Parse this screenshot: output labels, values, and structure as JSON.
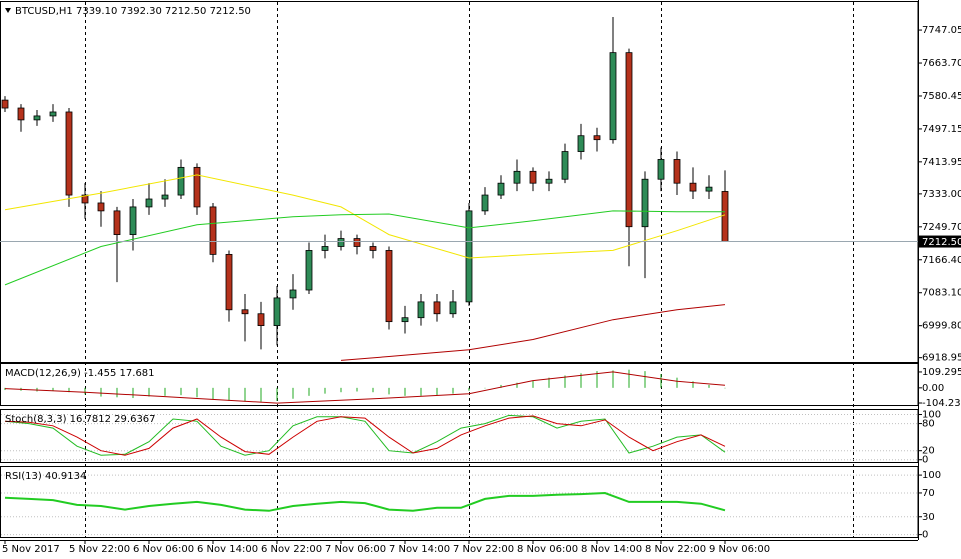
{
  "chart_data": [
    {
      "type": "candlestick",
      "title": "BTCUSD,H1  7339.10 7392.30 7212.50 7212.50",
      "xlim": [
        0,
        114
      ],
      "xticks": [
        {
          "value": 0,
          "label": "5 Nov 2017"
        },
        {
          "value": 10,
          "label": "5 Nov 22:00"
        },
        {
          "value": 18,
          "label": "6 Nov 06:00"
        },
        {
          "value": 26,
          "label": "6 Nov 14:00"
        },
        {
          "value": 34,
          "label": "6 Nov 22:00"
        },
        {
          "value": 42,
          "label": "7 Nov 06:00"
        },
        {
          "value": 50,
          "label": "7 Nov 14:00"
        },
        {
          "value": 58,
          "label": "7 Nov 22:00"
        },
        {
          "value": 66,
          "label": "8 Nov 06:00"
        },
        {
          "value": 74,
          "label": "8 Nov 14:00"
        },
        {
          "value": 82,
          "label": "8 Nov 22:00"
        },
        {
          "value": 90,
          "label": "9 Nov 06:00"
        }
      ],
      "xgrid": [
        10,
        34,
        58,
        82,
        106
      ],
      "ylim": [
        6908,
        7818
      ],
      "yticks": [
        7747.05,
        {
          "value": 7663.7,
          "label": "7663.70"
        },
        {
          "value": 7580.45,
          "label": "7580.45"
        },
        {
          "value": 7497.15,
          "label": "7497.15"
        },
        {
          "value": 7413.95,
          "label": "7413.95"
        },
        {
          "value": 7333,
          "label": "7333.00"
        },
        {
          "value": 7249.7,
          "label": "7249.70"
        },
        {
          "value": 7166.4,
          "label": "7166.40"
        },
        {
          "value": 7083.1,
          "label": "7083.10"
        },
        {
          "value": 6999.8,
          "label": "6999.80"
        },
        {
          "value": 6918.95,
          "label": "6918.95"
        }
      ],
      "up_color": "#2e8b57",
      "down_color": "#b5321c",
      "x": [
        0,
        2,
        4,
        6,
        8,
        10,
        12,
        14,
        16,
        18,
        20,
        22,
        24,
        26,
        28,
        30,
        32,
        34,
        36,
        38,
        40,
        42,
        44,
        46,
        48,
        50,
        52,
        54,
        56,
        58,
        60,
        62,
        64,
        66,
        68,
        70,
        72,
        74,
        76,
        78,
        80,
        82,
        84,
        86,
        88,
        90
      ],
      "open": [
        7570,
        7550,
        7520,
        7530,
        7540,
        7330,
        7310,
        7290,
        7230,
        7300,
        7320,
        7330,
        7400,
        7300,
        7180,
        7040,
        7030,
        7000,
        7070,
        7090,
        7190,
        7200,
        7220,
        7200,
        7190,
        7010,
        7020,
        7060,
        7030,
        7060,
        7290,
        7330,
        7360,
        7390,
        7360,
        7370,
        7440,
        7480,
        7470,
        7690,
        7250,
        7370,
        7420,
        7360,
        7340,
        7339.1
      ],
      "high": [
        7580,
        7560,
        7545,
        7560,
        7550,
        7360,
        7340,
        7300,
        7320,
        7360,
        7370,
        7420,
        7410,
        7310,
        7190,
        7080,
        7060,
        7100,
        7130,
        7210,
        7230,
        7240,
        7230,
        7210,
        7200,
        7050,
        7080,
        7080,
        7090,
        7310,
        7350,
        7380,
        7420,
        7400,
        7390,
        7460,
        7510,
        7500,
        7780,
        7700,
        7390,
        7450,
        7440,
        7400,
        7380,
        7392.3
      ],
      "low": [
        7540,
        7490,
        7505,
        7515,
        7300,
        7270,
        7250,
        7110,
        7190,
        7280,
        7300,
        7320,
        7280,
        7160,
        7010,
        6960,
        6940,
        6950,
        7040,
        7080,
        7170,
        7190,
        7180,
        7170,
        6990,
        6980,
        7000,
        7010,
        7020,
        7050,
        7280,
        7320,
        7340,
        7340,
        7340,
        7360,
        7420,
        7440,
        7460,
        7150,
        7120,
        7340,
        7330,
        7320,
        7320,
        7212.5
      ],
      "close": [
        7550,
        7520,
        7530,
        7540,
        7330,
        7310,
        7290,
        7230,
        7300,
        7320,
        7330,
        7400,
        7300,
        7180,
        7040,
        7030,
        7000,
        7070,
        7090,
        7190,
        7200,
        7220,
        7200,
        7190,
        7010,
        7020,
        7060,
        7030,
        7060,
        7290,
        7330,
        7360,
        7390,
        7360,
        7370,
        7440,
        7480,
        7470,
        7690,
        7250,
        7370,
        7420,
        7360,
        7340,
        7350,
        7212.5
      ],
      "line_x": [
        0,
        12,
        24,
        36,
        42,
        48,
        58,
        66,
        76,
        84,
        90
      ],
      "lines": [
        {
          "color": "#f2e600",
          "values": [
            7293,
            7335,
            7381,
            7330,
            7300,
            7230,
            7171,
            7180,
            7190,
            7240,
            7280
          ]
        },
        {
          "color": "#22cc22",
          "values": [
            7103,
            7200,
            7255,
            7275,
            7280,
            7282,
            7247,
            7265,
            7290,
            7288,
            7288
          ]
        },
        {
          "color": "#b00000",
          "values": [
            null,
            null,
            null,
            null,
            6912,
            6922,
            6939,
            6965,
            7015,
            7040,
            7053
          ]
        }
      ],
      "price_line": {
        "value": 7212.5,
        "label": "7212.50"
      }
    },
    {
      "type": "macd",
      "title": "MACD(12,26,9) -1.455 17.681",
      "xlim": [
        0,
        114
      ],
      "ylim": [
        -118,
        164
      ],
      "yticks": [
        109.295,
        {
          "value": 0,
          "label": "0.00"
        },
        -104.238
      ],
      "bar_color": "#22aa22",
      "signal_color": "#b00000",
      "x": [
        0,
        2,
        4,
        6,
        8,
        10,
        12,
        14,
        16,
        18,
        20,
        22,
        24,
        26,
        28,
        30,
        32,
        34,
        36,
        38,
        40,
        42,
        44,
        46,
        48,
        50,
        52,
        54,
        56,
        58,
        60,
        62,
        64,
        66,
        68,
        70,
        72,
        74,
        76,
        78,
        80,
        82,
        84,
        86,
        88,
        90
      ],
      "values": [
        -15,
        -20,
        -25,
        -20,
        -30,
        -45,
        -60,
        -65,
        -70,
        -60,
        -55,
        -50,
        -65,
        -80,
        -90,
        -95,
        -95,
        -90,
        -75,
        -55,
        -40,
        -30,
        -25,
        -30,
        -45,
        -55,
        -55,
        -50,
        -40,
        -20,
        0,
        20,
        35,
        50,
        70,
        85,
        100,
        115,
        120,
        125,
        115,
        95,
        70,
        45,
        20,
        -1.455
      ],
      "signal_x": [
        0,
        10,
        20,
        34,
        48,
        58,
        66,
        76,
        84,
        90
      ],
      "signal": [
        -5,
        -30,
        -60,
        -105,
        -70,
        -40,
        50,
        110,
        45,
        17.681
      ]
    },
    {
      "type": "line",
      "title": "Stoch(8,3,3) 16.7812 29.6367",
      "xlim": [
        0,
        114
      ],
      "ylim": [
        -5,
        110
      ],
      "grid": true,
      "yticks": [
        100,
        80,
        20,
        0
      ],
      "x": [
        0,
        3,
        6,
        9,
        12,
        15,
        18,
        21,
        24,
        27,
        30,
        33,
        36,
        39,
        42,
        45,
        48,
        51,
        54,
        57,
        60,
        63,
        66,
        69,
        72,
        75,
        78,
        81,
        84,
        87,
        90
      ],
      "series": [
        {
          "color": "#22bb22",
          "values": [
            85,
            80,
            70,
            30,
            10,
            12,
            40,
            90,
            85,
            30,
            10,
            20,
            75,
            95,
            95,
            85,
            20,
            15,
            40,
            70,
            80,
            98,
            95,
            70,
            85,
            90,
            15,
            30,
            50,
            55,
            16.7812
          ]
        },
        {
          "color": "#cc0000",
          "values": [
            85,
            83,
            75,
            50,
            20,
            10,
            25,
            70,
            90,
            50,
            18,
            12,
            50,
            85,
            95,
            92,
            50,
            15,
            25,
            55,
            75,
            92,
            97,
            80,
            75,
            88,
            50,
            20,
            40,
            55,
            29.6367
          ]
        }
      ]
    },
    {
      "type": "line",
      "title": "RSI(13) 40.9134",
      "xlim": [
        0,
        114
      ],
      "ylim": [
        -4,
        113.6
      ],
      "grid": true,
      "yticks": [
        100,
        70,
        30,
        0
      ],
      "x": [
        0,
        3,
        6,
        9,
        12,
        15,
        18,
        21,
        24,
        27,
        30,
        33,
        36,
        39,
        42,
        45,
        48,
        51,
        54,
        57,
        60,
        63,
        66,
        69,
        72,
        75,
        78,
        81,
        84,
        87,
        90
      ],
      "series": [
        {
          "color": "#22cc22",
          "values": [
            62,
            60,
            58,
            50,
            48,
            42,
            48,
            52,
            55,
            50,
            42,
            40,
            48,
            52,
            55,
            53,
            42,
            40,
            45,
            45,
            60,
            65,
            65,
            67,
            68,
            70,
            55,
            55,
            55,
            52,
            40.9134
          ]
        }
      ]
    }
  ]
}
